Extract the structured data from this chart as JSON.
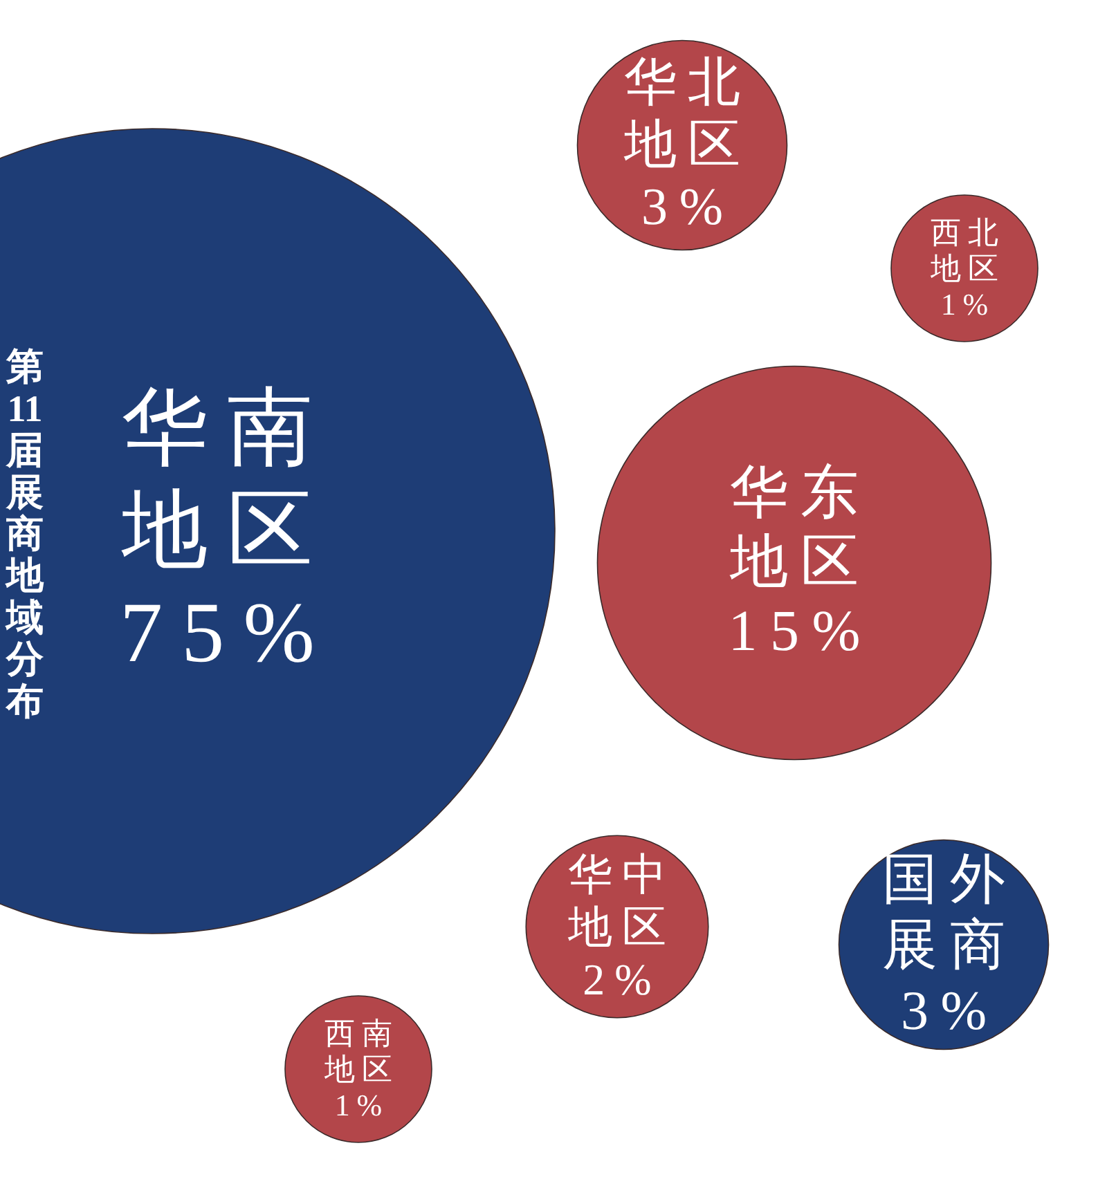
{
  "chart_data": {
    "type": "other",
    "title": "第11届展商地域分布",
    "categories": [
      "华南地区",
      "华东地区",
      "华北地区",
      "国外展商",
      "华中地区",
      "西北地区",
      "西南地区"
    ],
    "values": [
      75,
      15,
      3,
      3,
      2,
      1,
      1
    ],
    "value_labels": [
      "75%",
      "15%",
      "3%",
      "3%",
      "2%",
      "1%",
      "1%"
    ],
    "colors": [
      "#1e3d76",
      "#b3464a",
      "#b3464a",
      "#1e3d76",
      "#b3464a",
      "#b3464a",
      "#b3464a"
    ]
  }
}
